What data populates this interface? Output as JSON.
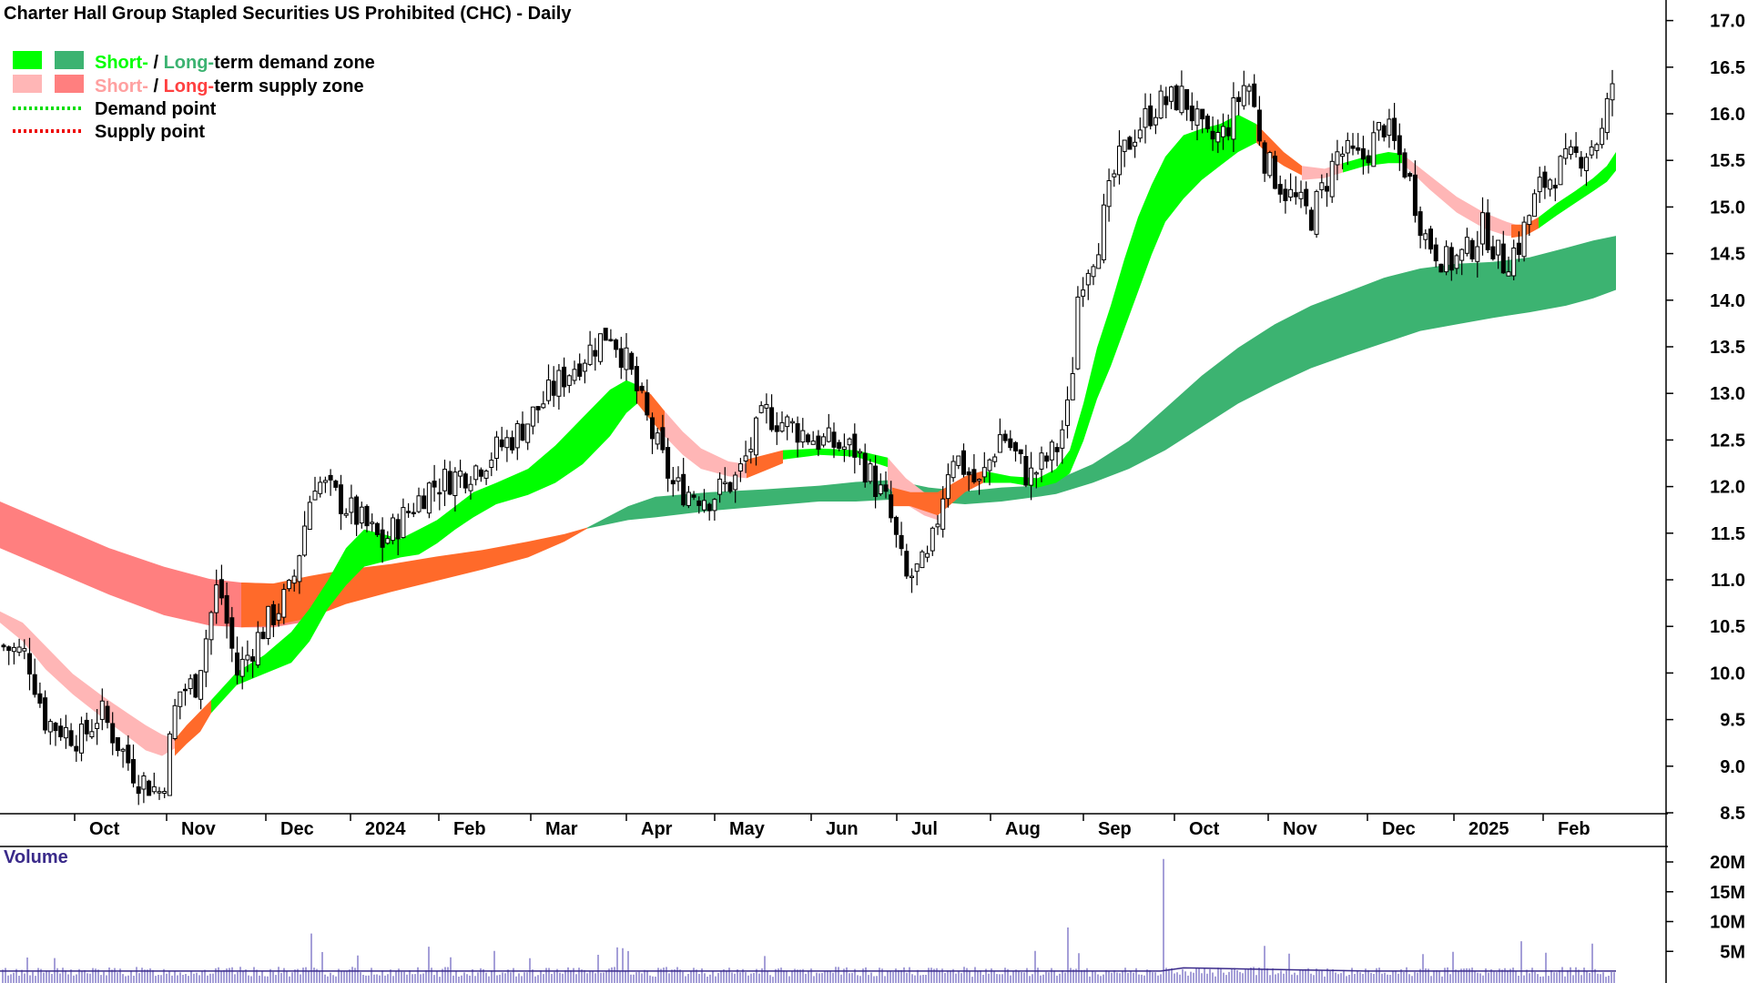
{
  "title": "Charter Hall Group Stapled Securities US Prohibited (CHC) - Daily",
  "legend": {
    "zone_demand": {
      "short": "Short-",
      "sep": " / ",
      "long": "Long-",
      "rest": "term demand zone"
    },
    "zone_supply": {
      "short": "Short-",
      "sep": " / ",
      "long": "Long-",
      "rest": "term supply zone"
    },
    "demand_point": "Demand point",
    "supply_point": "Supply point"
  },
  "volume_label": "Volume",
  "colors": {
    "short_demand": "#00ff00",
    "long_demand": "#3cb371",
    "short_supply": "#ffb6b6",
    "long_supply": "#ff7f7f",
    "transition": "#ff6a2a",
    "candle_up": "#ffffff",
    "candle_down": "#000000",
    "volume_bar": "#4b3fb0",
    "volume_ma": "#3a2a8a",
    "legend_short_supply_text": "#ffa0a0",
    "legend_long_supply_text": "#ff4040"
  },
  "chart_data": {
    "type": "candlestick",
    "title": "Charter Hall Group Stapled Securities US Prohibited (CHC) - Daily",
    "x_ticks": [
      "Oct",
      "Nov",
      "Dec",
      "2024",
      "Feb",
      "Mar",
      "Apr",
      "May",
      "Jun",
      "Jul",
      "Aug",
      "Sep",
      "Oct",
      "Nov",
      "Dec",
      "2025",
      "Feb"
    ],
    "y_ticks": [
      8.5,
      9.0,
      9.5,
      10.0,
      10.5,
      11.0,
      11.5,
      12.0,
      12.5,
      13.0,
      13.5,
      14.0,
      14.5,
      15.0,
      15.5,
      16.0,
      16.5,
      17.0
    ],
    "ylim": [
      8.5,
      17.0
    ],
    "volume_ticks": [
      "5M",
      "10M",
      "15M",
      "20M"
    ],
    "volume_ylim": [
      0,
      22
    ],
    "price_path_months": [
      {
        "m": "Sep",
        "close": 10.3
      },
      {
        "m": "Oct",
        "close": 9.6
      },
      {
        "m": "Nov",
        "close": 8.8
      },
      {
        "m": "Nov",
        "close": 9.9
      },
      {
        "m": "Dec",
        "close": 10.4
      },
      {
        "m": "Dec",
        "close": 11.1
      },
      {
        "m": "2024",
        "close": 12.1
      },
      {
        "m": "2024",
        "close": 11.4
      },
      {
        "m": "Feb",
        "close": 12.1
      },
      {
        "m": "Mar",
        "close": 12.9
      },
      {
        "m": "Mar",
        "close": 13.6
      },
      {
        "m": "Apr",
        "close": 12.2
      },
      {
        "m": "May",
        "close": 12.2
      },
      {
        "m": "May",
        "close": 12.8
      },
      {
        "m": "Jun",
        "close": 12.4
      },
      {
        "m": "Jul",
        "close": 11.0
      },
      {
        "m": "Jul",
        "close": 12.5
      },
      {
        "m": "Aug",
        "close": 12.1
      },
      {
        "m": "Aug",
        "close": 12.5
      },
      {
        "m": "Aug",
        "close": 14.8
      },
      {
        "m": "Sep",
        "close": 15.8
      },
      {
        "m": "Sep",
        "close": 16.2
      },
      {
        "m": "Oct",
        "close": 15.8
      },
      {
        "m": "Oct",
        "close": 16.4
      },
      {
        "m": "Nov",
        "close": 15.0
      },
      {
        "m": "Nov",
        "close": 15.6
      },
      {
        "m": "Dec",
        "close": 15.9
      },
      {
        "m": "Dec",
        "close": 14.4
      },
      {
        "m": "2025",
        "close": 14.5
      },
      {
        "m": "2025",
        "close": 15.2
      },
      {
        "m": "Feb",
        "close": 15.8
      },
      {
        "m": "Feb",
        "close": 16.5
      }
    ],
    "volume_m": {
      "typical": 1.5,
      "spikes": [
        {
          "m": "Dec",
          "value": 8.0
        },
        {
          "m": "Aug",
          "value": 9.0
        },
        {
          "m": "Sep",
          "value": 20.5
        }
      ]
    }
  }
}
